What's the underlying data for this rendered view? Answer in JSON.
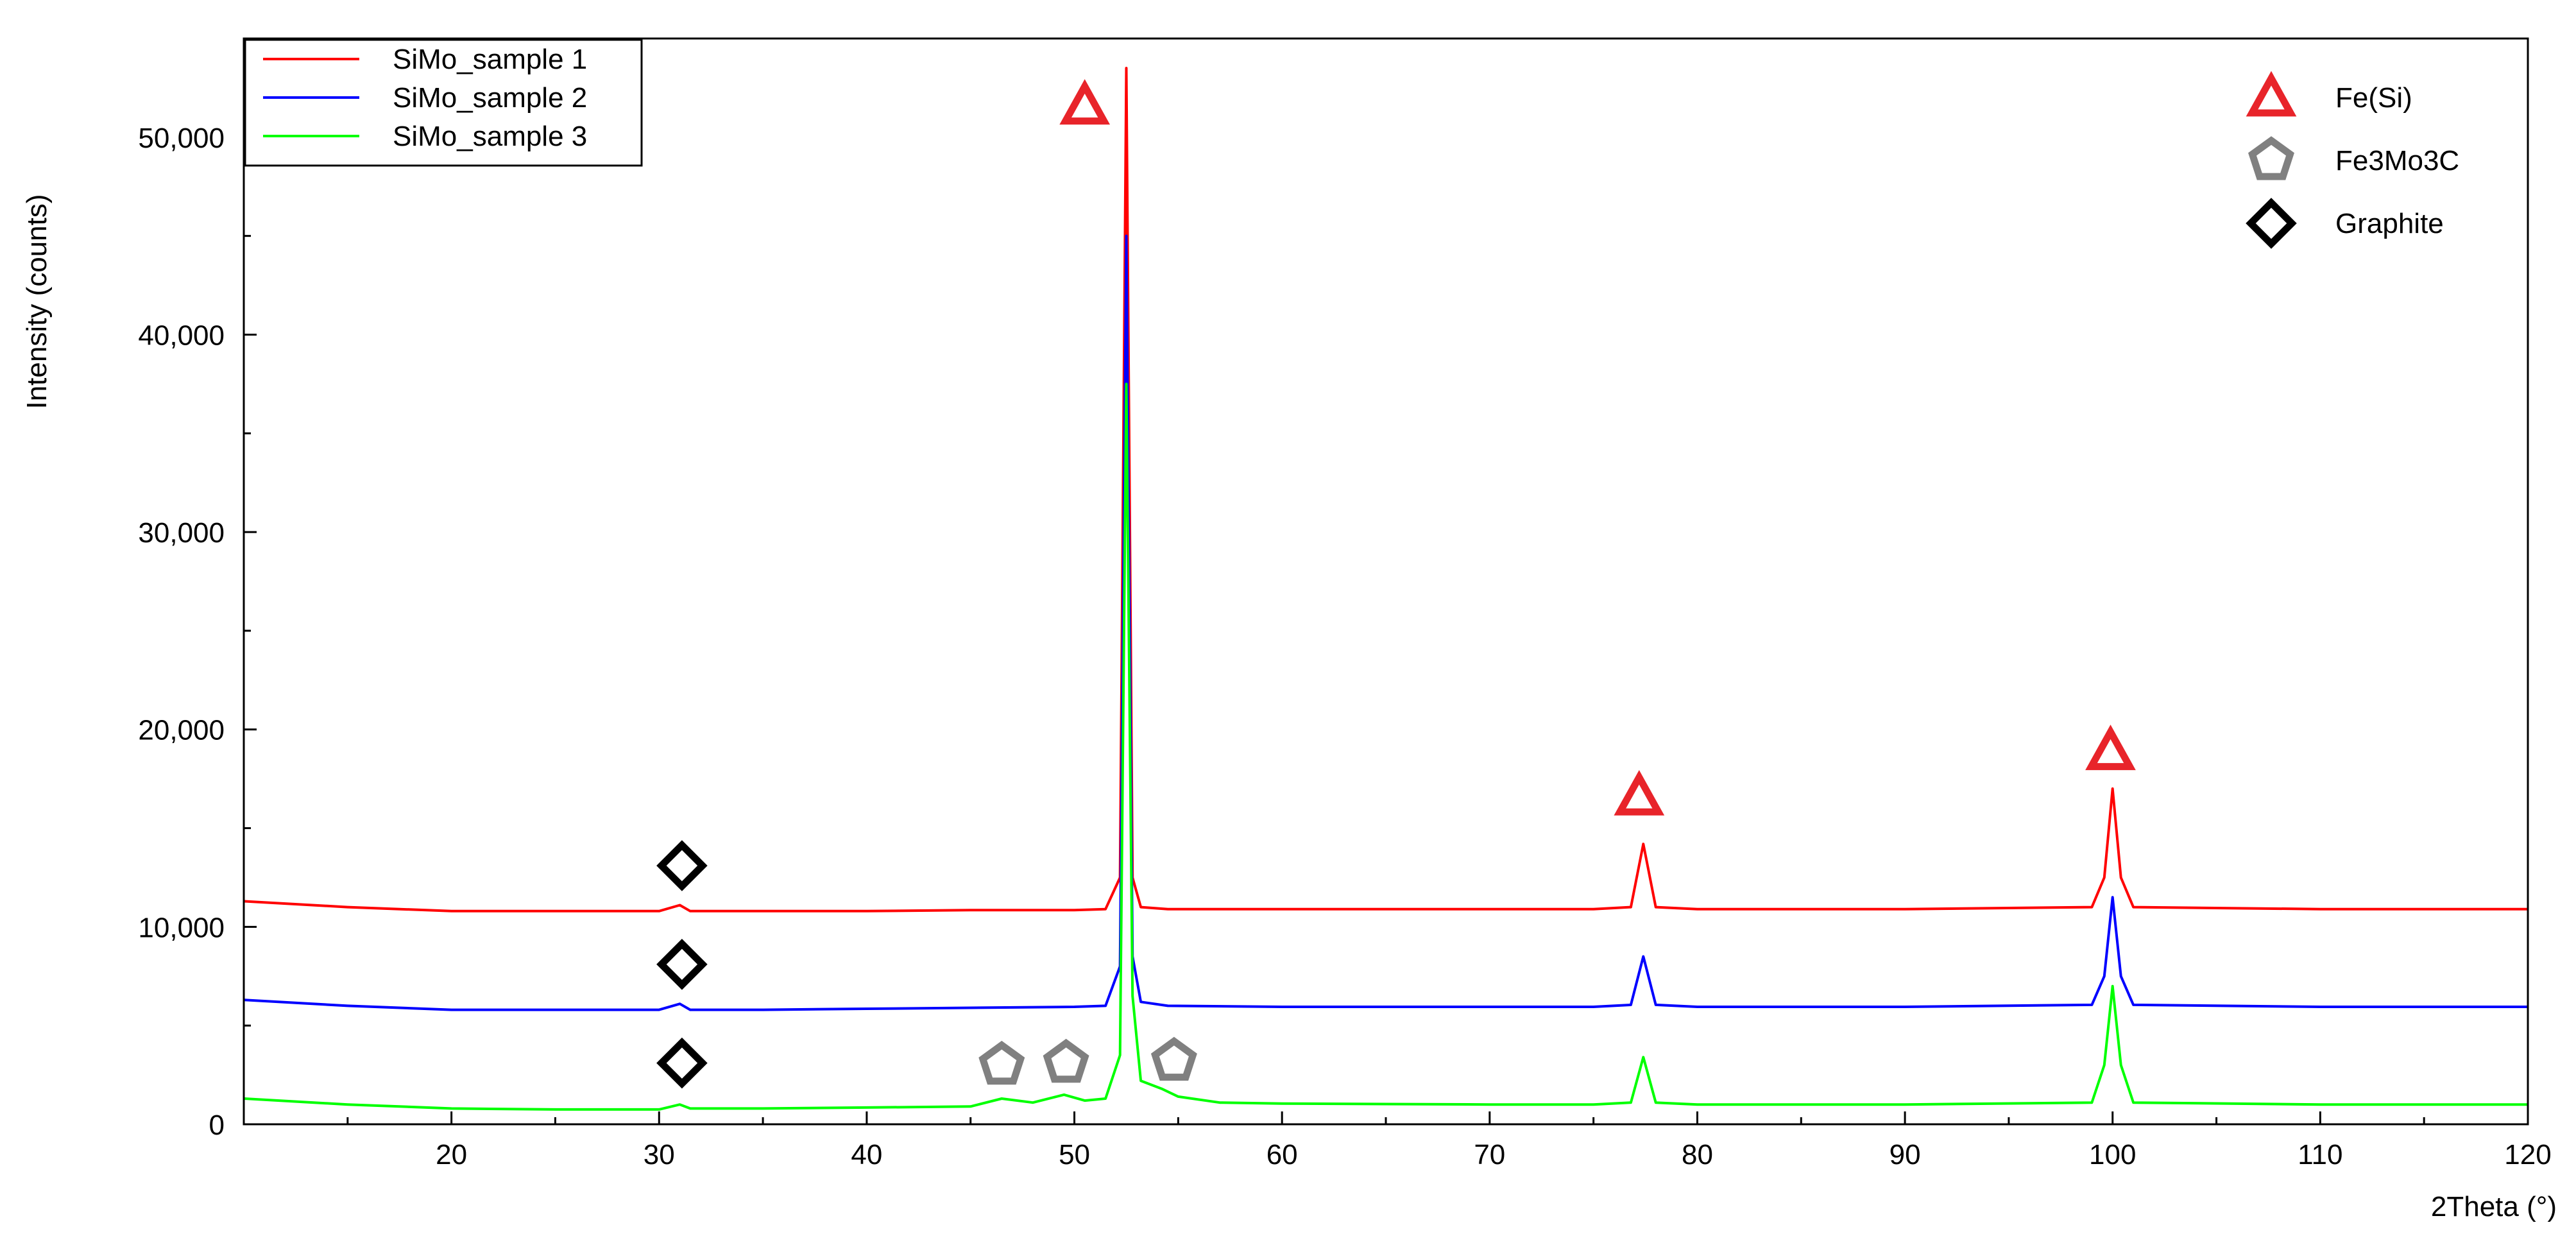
{
  "chart_data": {
    "type": "line",
    "title": "",
    "xlabel": "2Theta (°)",
    "ylabel": "Intensity (counts)",
    "xlim": [
      10,
      120
    ],
    "ylim": [
      0,
      55000
    ],
    "x_ticks": [
      20,
      30,
      40,
      50,
      60,
      70,
      80,
      90,
      100,
      110,
      120
    ],
    "x_tick_labels": [
      "20",
      "30",
      "40",
      "50",
      "60",
      "70",
      "80",
      "90",
      "100",
      "110",
      "120"
    ],
    "y_ticks": [
      0,
      10000,
      20000,
      30000,
      40000,
      50000
    ],
    "y_tick_labels": [
      "0",
      "10,000",
      "20,000",
      "30,000",
      "40,000",
      "50,000"
    ],
    "grid": false,
    "legend_placement": "top-left",
    "series": [
      {
        "name": "SiMo_sample 1",
        "color": "#ff0000",
        "x": [
          10,
          15,
          20,
          25,
          30,
          31,
          31.5,
          32,
          35,
          40,
          45,
          50,
          51.5,
          52.2,
          52.5,
          52.8,
          53.2,
          54.5,
          60,
          70,
          75,
          76.8,
          77.4,
          78,
          80,
          90,
          99,
          99.6,
          100,
          100.4,
          101,
          110,
          120
        ],
        "y": [
          11300,
          11000,
          10800,
          10800,
          10800,
          11100,
          10800,
          10800,
          10800,
          10800,
          10850,
          10850,
          10900,
          12500,
          53500,
          12500,
          11000,
          10900,
          10900,
          10900,
          10900,
          11000,
          14200,
          11000,
          10900,
          10900,
          11000,
          12500,
          17000,
          12500,
          11000,
          10900,
          10900
        ]
      },
      {
        "name": "SiMo_sample 2",
        "color": "#0000ff",
        "x": [
          10,
          15,
          20,
          25,
          30,
          31,
          31.5,
          32,
          35,
          40,
          45,
          50,
          51.5,
          52.2,
          52.5,
          52.8,
          53.2,
          54.5,
          60,
          70,
          75,
          76.8,
          77.4,
          78,
          80,
          90,
          99,
          99.6,
          100,
          100.4,
          101,
          110,
          120
        ],
        "y": [
          6300,
          6000,
          5800,
          5800,
          5800,
          6100,
          5800,
          5800,
          5800,
          5850,
          5900,
          5950,
          6000,
          8000,
          45000,
          8500,
          6200,
          6000,
          5950,
          5950,
          5950,
          6050,
          8500,
          6050,
          5950,
          5950,
          6050,
          7500,
          11500,
          7500,
          6050,
          5950,
          5950
        ]
      },
      {
        "name": "SiMo_sample 3",
        "color": "#00ff00",
        "x": [
          10,
          15,
          20,
          25,
          30,
          31,
          31.5,
          32,
          35,
          40,
          45,
          46.5,
          48,
          49.5,
          50.5,
          51.5,
          52.2,
          52.5,
          52.8,
          53.2,
          54.2,
          55,
          57,
          60,
          70,
          75,
          76.8,
          77.4,
          78,
          80,
          90,
          99,
          99.6,
          100,
          100.4,
          101,
          110,
          120
        ],
        "y": [
          1300,
          1000,
          800,
          750,
          750,
          1000,
          800,
          800,
          800,
          850,
          900,
          1300,
          1100,
          1500,
          1200,
          1300,
          3500,
          37500,
          6500,
          2200,
          1800,
          1400,
          1100,
          1050,
          1000,
          1000,
          1100,
          3400,
          1100,
          1000,
          1000,
          1100,
          3000,
          7000,
          3000,
          1100,
          1000,
          1000
        ]
      }
    ],
    "annotations": [
      {
        "type": "triangle",
        "phase": "Fe(Si)",
        "x": 50.5,
        "y": 51600,
        "color": "#e8242a"
      },
      {
        "type": "triangle",
        "phase": "Fe(Si)",
        "x": 77.2,
        "y": 16600,
        "color": "#e8242a"
      },
      {
        "type": "triangle",
        "phase": "Fe(Si)",
        "x": 99.9,
        "y": 18900,
        "color": "#e8242a"
      },
      {
        "type": "pentagon",
        "phase": "Fe3Mo3C",
        "x": 46.5,
        "y": 3000,
        "color": "#808080"
      },
      {
        "type": "pentagon",
        "phase": "Fe3Mo3C",
        "x": 49.6,
        "y": 3100,
        "color": "#808080"
      },
      {
        "type": "pentagon",
        "phase": "Fe3Mo3C",
        "x": 54.8,
        "y": 3200,
        "color": "#808080"
      },
      {
        "type": "diamond",
        "phase": "Graphite",
        "x": 31.1,
        "y": 13100,
        "color": "#000000"
      },
      {
        "type": "diamond",
        "phase": "Graphite",
        "x": 31.1,
        "y": 8100,
        "color": "#000000"
      },
      {
        "type": "diamond",
        "phase": "Graphite",
        "x": 31.1,
        "y": 3100,
        "color": "#000000"
      }
    ],
    "marker_legend": [
      {
        "type": "triangle",
        "label": "Fe(Si)",
        "color": "#e8242a"
      },
      {
        "type": "pentagon",
        "label": "Fe3Mo3C",
        "color": "#808080"
      },
      {
        "type": "diamond",
        "label": "Graphite",
        "color": "#000000"
      }
    ]
  }
}
